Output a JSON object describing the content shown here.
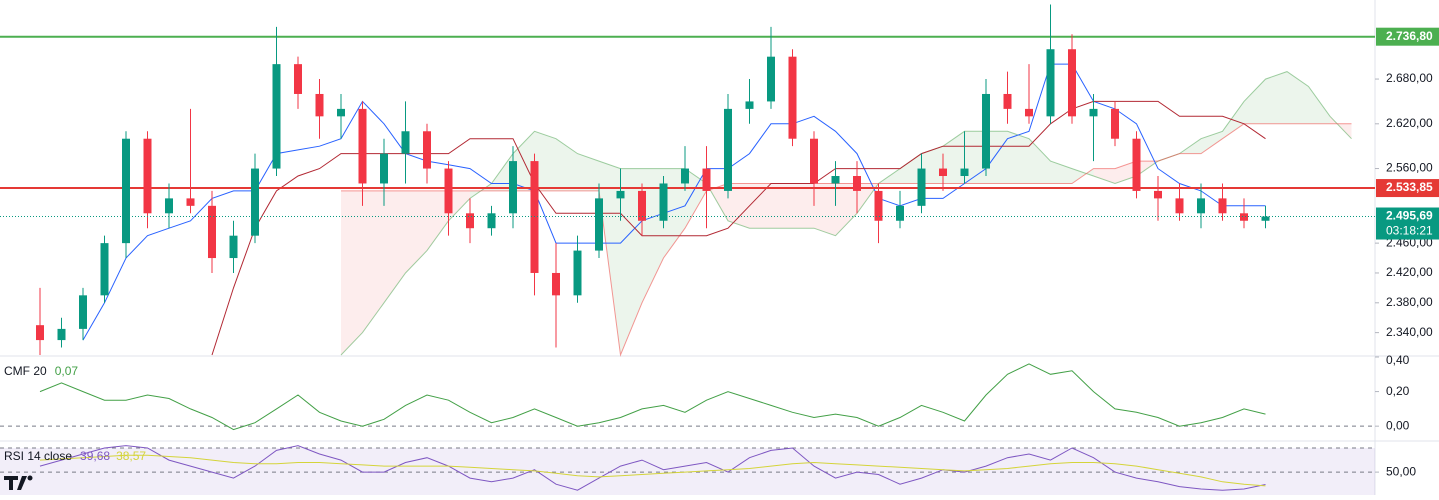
{
  "chart_data": [
    {
      "type": "candlestick",
      "ylim": [
        2310,
        2786
      ],
      "yticks": [
        {
          "value": 2340,
          "label": "2.340,00"
        },
        {
          "value": 2380,
          "label": "2.380,00"
        },
        {
          "value": 2420,
          "label": "2.420,00"
        },
        {
          "value": 2460,
          "label": "2.460,00"
        },
        {
          "value": 2560,
          "label": "2.560,00"
        },
        {
          "value": 2620,
          "label": "2.620,00"
        },
        {
          "value": 2680,
          "label": "2.680,00"
        }
      ],
      "up_color": "#089981",
      "down_color": "#f23645",
      "open": [
        2350,
        2330,
        2345,
        2390,
        2460,
        2600,
        2500,
        2520,
        2510,
        2440,
        2470,
        2560,
        2700,
        2660,
        2630,
        2640,
        2540,
        2580,
        2610,
        2560,
        2500,
        2480,
        2500,
        2570,
        2420,
        2390,
        2450,
        2520,
        2530,
        2490,
        2540,
        2560,
        2530,
        2640,
        2650,
        2710,
        2600,
        2540,
        2550,
        2530,
        2490,
        2510,
        2560,
        2550,
        2560,
        2660,
        2640,
        2630,
        2720,
        2630,
        2640,
        2600,
        2530,
        2520,
        2500,
        2520,
        2500,
        2490
      ],
      "high": [
        2400,
        2360,
        2400,
        2470,
        2610,
        2610,
        2540,
        2640,
        2530,
        2490,
        2580,
        2750,
        2710,
        2680,
        2660,
        2650,
        2600,
        2650,
        2620,
        2570,
        2520,
        2510,
        2590,
        2580,
        2460,
        2470,
        2540,
        2560,
        2540,
        2550,
        2590,
        2590,
        2660,
        2680,
        2750,
        2720,
        2610,
        2570,
        2570,
        2540,
        2530,
        2580,
        2580,
        2610,
        2680,
        2690,
        2700,
        2780,
        2740,
        2660,
        2650,
        2610,
        2550,
        2540,
        2540,
        2540,
        2520,
        2510
      ],
      "low": [
        2310,
        2320,
        2330,
        2380,
        2440,
        2480,
        2480,
        2500,
        2420,
        2420,
        2460,
        2550,
        2640,
        2600,
        2600,
        2510,
        2510,
        2540,
        2540,
        2470,
        2460,
        2470,
        2480,
        2390,
        2320,
        2380,
        2440,
        2490,
        2470,
        2480,
        2530,
        2480,
        2520,
        2620,
        2640,
        2590,
        2510,
        2510,
        2500,
        2460,
        2480,
        2500,
        2530,
        2540,
        2550,
        2620,
        2620,
        2620,
        2620,
        2570,
        2590,
        2520,
        2490,
        2490,
        2480,
        2490,
        2480,
        2480
      ],
      "close": [
        2330,
        2345,
        2390,
        2460,
        2600,
        2500,
        2520,
        2510,
        2440,
        2470,
        2560,
        2700,
        2660,
        2630,
        2640,
        2540,
        2580,
        2610,
        2560,
        2500,
        2480,
        2500,
        2570,
        2420,
        2390,
        2450,
        2520,
        2530,
        2490,
        2540,
        2560,
        2530,
        2640,
        2650,
        2710,
        2600,
        2540,
        2550,
        2530,
        2490,
        2510,
        2560,
        2550,
        2560,
        2660,
        2640,
        2630,
        2720,
        2630,
        2640,
        2600,
        2530,
        2520,
        2500,
        2520,
        2500,
        2490,
        2495.69
      ],
      "lines": [
        {
          "color": "#2962ff",
          "values": [
            null,
            null,
            2330,
            2380,
            2440,
            2470,
            2480,
            2490,
            2520,
            2530,
            2530,
            2580,
            2585,
            2590,
            2600,
            2650,
            2620,
            2580,
            2570,
            2565,
            2560,
            2540,
            2540,
            2530,
            2460,
            2460,
            2460,
            2460,
            2490,
            2500,
            2510,
            2560,
            2560,
            2580,
            2620,
            2620,
            2630,
            2610,
            2580,
            2520,
            2510,
            2520,
            2520,
            2540,
            2560,
            2600,
            2610,
            2700,
            2700,
            2650,
            2640,
            2620,
            2560,
            2540,
            2530,
            2510,
            2510,
            2510
          ]
        },
        {
          "color": "#b22833",
          "values": [
            null,
            null,
            null,
            null,
            null,
            null,
            null,
            null,
            2310,
            2400,
            2480,
            2530,
            2550,
            2560,
            2580,
            2580,
            2580,
            2580,
            2580,
            2580,
            2600,
            2600,
            2600,
            2540,
            2500,
            2500,
            2500,
            2500,
            2470,
            2470,
            2470,
            2470,
            2480,
            2510,
            2540,
            2540,
            2540,
            2560,
            2560,
            2560,
            2560,
            2580,
            2590,
            2590,
            2590,
            2590,
            2590,
            2620,
            2640,
            2650,
            2650,
            2650,
            2650,
            2630,
            2630,
            2630,
            2620,
            2600
          ]
        }
      ],
      "cloud": {
        "up_color": "#43a047",
        "down_color": "#ef5350",
        "span_a": [
          null,
          null,
          null,
          null,
          null,
          null,
          null,
          null,
          null,
          null,
          null,
          null,
          null,
          null,
          2310,
          2340,
          2380,
          2420,
          2450,
          2490,
          2520,
          2540,
          2580,
          2610,
          2600,
          2580,
          2570,
          2560,
          2560,
          2560,
          2560,
          2540,
          2490,
          2480,
          2480,
          2480,
          2480,
          2470,
          2500,
          2540,
          2560,
          2580,
          2590,
          2610,
          2610,
          2610,
          2600,
          2570,
          2560,
          2550,
          2540,
          2550,
          2570,
          2580,
          2600,
          2610,
          2650,
          2680,
          2690,
          2670,
          2630,
          2600
        ],
        "span_b": [
          null,
          null,
          null,
          null,
          null,
          null,
          null,
          null,
          null,
          null,
          null,
          null,
          null,
          null,
          2530,
          2530,
          2530,
          2530,
          2530,
          2530,
          2530,
          2530,
          2530,
          2530,
          2530,
          2530,
          2530,
          2310,
          2380,
          2440,
          2480,
          2530,
          2540,
          2540,
          2540,
          2540,
          2540,
          2540,
          2540,
          2540,
          2540,
          2540,
          2540,
          2540,
          2540,
          2540,
          2540,
          2540,
          2540,
          2560,
          2560,
          2570,
          2570,
          2580,
          2580,
          2600,
          2620,
          2620,
          2620,
          2620,
          2620,
          2620
        ]
      },
      "levels": [
        {
          "value": 2736.8,
          "label": "2.736,80",
          "color": "#4caf50"
        },
        {
          "value": 2533.85,
          "label": "2.533,85",
          "color": "#e53935"
        }
      ],
      "last_price": {
        "value": 2495.69,
        "label": "2.495,69"
      },
      "countdown": "03:18:21"
    },
    {
      "type": "line",
      "title": "CMF 20",
      "current": {
        "value": 0.07,
        "label": "0,07"
      },
      "ylim": [
        -0.08,
        0.4
      ],
      "yticks": [
        {
          "value": 0,
          "label": "0,00"
        },
        {
          "value": 0.2,
          "label": "0,20"
        },
        {
          "value": 0.4,
          "label": "0,40"
        }
      ],
      "zero_line": 0,
      "series": [
        {
          "color": "#43a047",
          "values": [
            0.2,
            0.25,
            0.2,
            0.15,
            0.15,
            0.18,
            0.16,
            0.1,
            0.05,
            -0.02,
            0.02,
            0.1,
            0.18,
            0.08,
            0.03,
            0.0,
            0.04,
            0.12,
            0.18,
            0.15,
            0.08,
            0.02,
            0.05,
            0.1,
            0.05,
            0.0,
            0.02,
            0.05,
            0.1,
            0.12,
            0.08,
            0.15,
            0.2,
            0.16,
            0.12,
            0.08,
            0.05,
            0.07,
            0.05,
            0.0,
            0.05,
            0.12,
            0.08,
            0.03,
            0.18,
            0.3,
            0.36,
            0.3,
            0.32,
            0.2,
            0.1,
            0.08,
            0.05,
            0.0,
            0.02,
            0.05,
            0.1,
            0.07
          ]
        }
      ]
    },
    {
      "type": "line",
      "title": "RSI 14 close",
      "ylim": [
        31,
        75
      ],
      "yticks": [
        {
          "value": 50,
          "label": "50,00"
        }
      ],
      "band_top": 70,
      "series": [
        {
          "color": "#7e57c2",
          "current": {
            "value": 39.68,
            "label": "39,68"
          },
          "values": [
            55,
            60,
            65,
            70,
            72,
            70,
            60,
            55,
            50,
            45,
            55,
            68,
            72,
            65,
            60,
            50,
            50,
            58,
            62,
            55,
            45,
            42,
            45,
            52,
            40,
            35,
            45,
            55,
            60,
            52,
            55,
            58,
            50,
            62,
            68,
            70,
            55,
            45,
            50,
            48,
            40,
            45,
            52,
            50,
            55,
            62,
            65,
            60,
            70,
            62,
            50,
            45,
            42,
            38,
            36,
            35,
            36,
            39.68
          ]
        },
        {
          "color": "#d4d43a",
          "current": {
            "value": 38.57,
            "label": "38,57"
          },
          "values": [
            60,
            61,
            62,
            63,
            64,
            64,
            63,
            62,
            60,
            58,
            57,
            57,
            58,
            58,
            57,
            56,
            55,
            55,
            55,
            55,
            54,
            53,
            52,
            51,
            49,
            47,
            46,
            47,
            48,
            49,
            50,
            51,
            52,
            53,
            55,
            57,
            58,
            57,
            56,
            55,
            54,
            53,
            52,
            51,
            52,
            53,
            55,
            57,
            58,
            58,
            57,
            55,
            52,
            49,
            46,
            42,
            40,
            38.57
          ]
        }
      ]
    }
  ]
}
